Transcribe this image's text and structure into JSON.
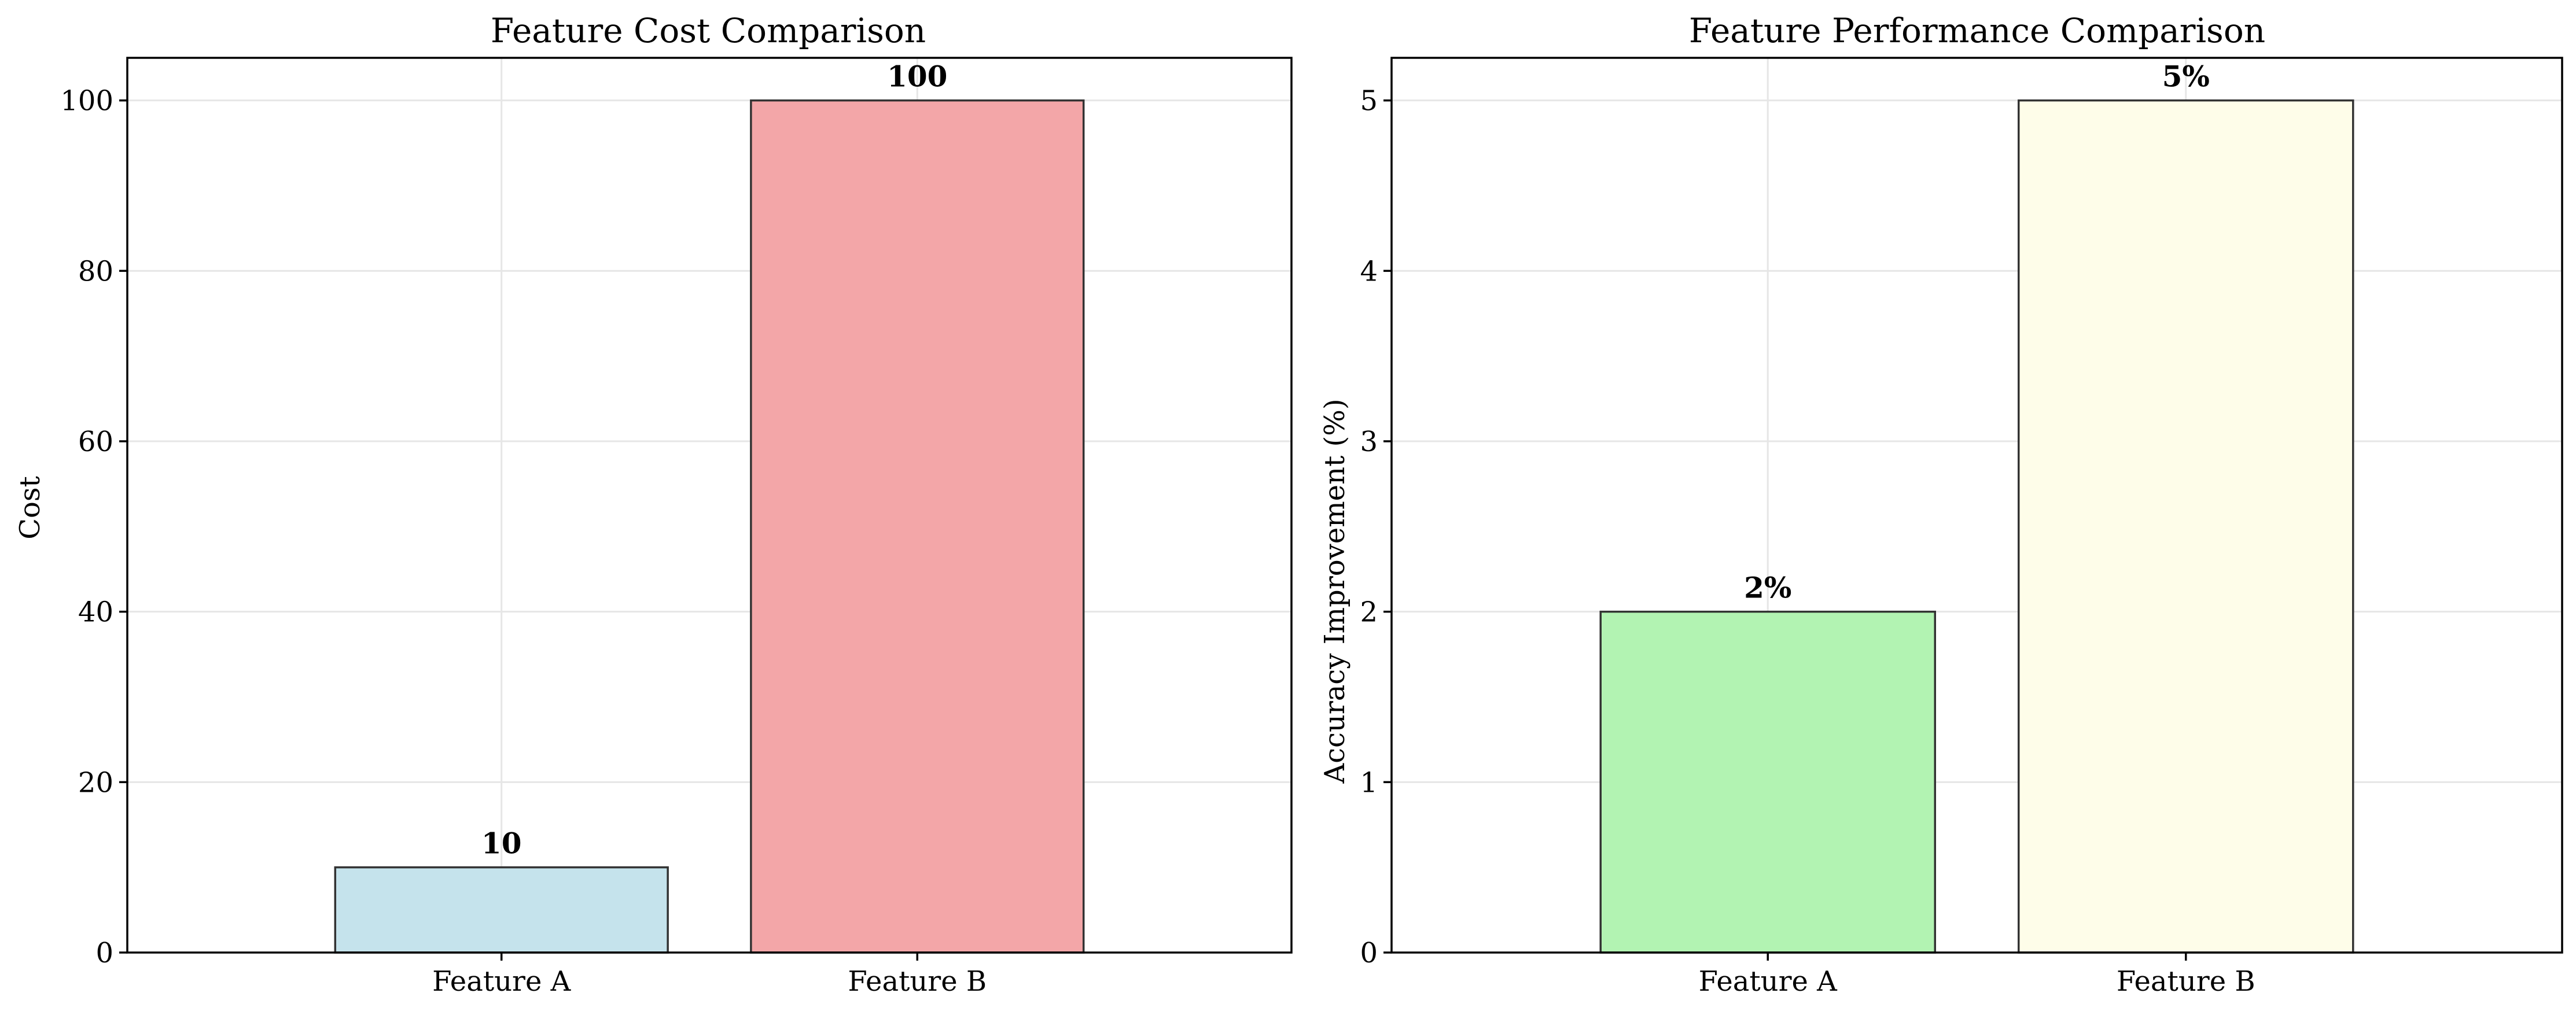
{
  "chart_data": [
    {
      "type": "bar",
      "title": "Feature Cost Comparison",
      "xlabel": "",
      "ylabel": "Cost",
      "categories": [
        "Feature A",
        "Feature B"
      ],
      "values": [
        10,
        100
      ],
      "value_labels": [
        "10",
        "100"
      ],
      "colors": [
        "#c5e3ec",
        "#f3a6a8"
      ],
      "ylim": [
        0,
        105
      ],
      "yticks": [
        0,
        20,
        40,
        60,
        80,
        100
      ],
      "grid": true
    },
    {
      "type": "bar",
      "title": "Feature Performance Comparison",
      "xlabel": "",
      "ylabel": "Accuracy Improvement (%)",
      "categories": [
        "Feature A",
        "Feature B"
      ],
      "values": [
        2,
        5
      ],
      "value_labels": [
        "2%",
        "5%"
      ],
      "colors": [
        "#b2f3b2",
        "#fefde9"
      ],
      "ylim": [
        0,
        5.25
      ],
      "yticks": [
        0,
        1,
        2,
        3,
        4,
        5
      ],
      "grid": true
    }
  ]
}
